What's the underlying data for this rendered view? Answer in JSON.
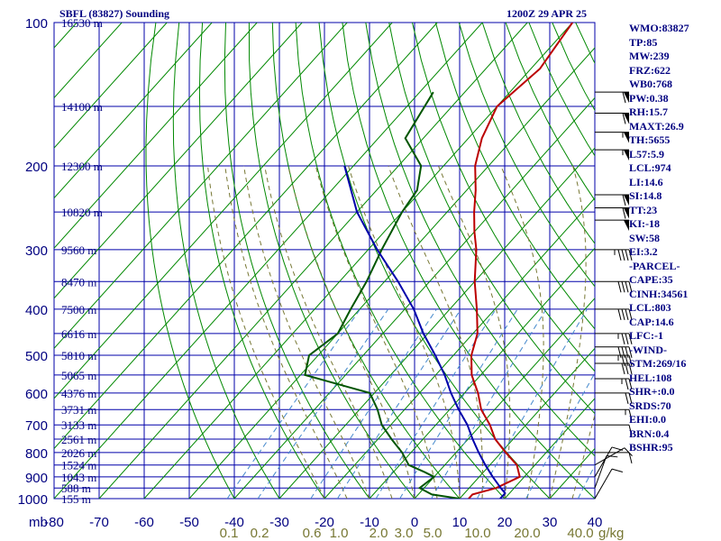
{
  "header": {
    "title_left": "SBFL (83827) Sounding",
    "title_right": "1200Z 29 APR 25"
  },
  "indices": [
    "WMO:83827",
    "TP:85",
    "MW:239",
    "FRZ:622",
    "WB0:768",
    "PW:0.38",
    "RH:15.7",
    "MAXT:26.9",
    "TH:5655",
    "L57:5.9",
    "LCL:974",
    "LI:14.6",
    "SI:14.8",
    "TT:23",
    "KI:-18",
    "SW:58",
    "EI:3.2",
    "-PARCEL-",
    "CAPE:35",
    "CINH:34561",
    "LCL:803",
    "CAP:14.6",
    "LFC:-1",
    "-WIND-",
    "STM:269/16",
    "HEL:108",
    "SHR+:0.0",
    "SRDS:70",
    "EHI:0.0",
    "BRN:0.4",
    "BSHR:95"
  ],
  "colors": {
    "grid": "#0000aa",
    "isotherm": "#008800",
    "dry_adiabat": "#008800",
    "moist_adiabat": "#777733",
    "mixing_ratio": "#4488cc",
    "temperature": "#bb0000",
    "dewpoint": "#005500",
    "parcel": "#0000aa",
    "label": "#000080",
    "mixing_label": "#777733"
  },
  "chart_data": {
    "type": "line",
    "title": "SBFL (83827) Sounding",
    "subtitle": "1200Z 29 APR 25",
    "x_unit_label": "mb",
    "x_ticks": [
      -80,
      -70,
      -60,
      -50,
      -40,
      -30,
      -20,
      -10,
      0,
      10,
      20,
      30,
      40
    ],
    "x_tick_labels": [
      "-80",
      "-70",
      "-60",
      "-50",
      "-40",
      "-30",
      "-20",
      "-10",
      "0",
      "10",
      "20",
      "30",
      "40"
    ],
    "xlim": [
      -80,
      40
    ],
    "y_ticks": [
      100,
      200,
      300,
      400,
      500,
      600,
      700,
      800,
      900,
      1000
    ],
    "y_tick_labels": [
      "100",
      "200",
      "300",
      "400",
      "500",
      "600",
      "700",
      "800",
      "900",
      "1000"
    ],
    "ylim": [
      100,
      1000
    ],
    "y_scale": "log",
    "height_labels": [
      {
        "p": 100,
        "label": "16530 m"
      },
      {
        "p": 150,
        "label": "14100 m"
      },
      {
        "p": 200,
        "label": "12300 m"
      },
      {
        "p": 250,
        "label": "10820 m"
      },
      {
        "p": 300,
        "label": "9560 m"
      },
      {
        "p": 350,
        "label": "8470 m"
      },
      {
        "p": 400,
        "label": "7500 m"
      },
      {
        "p": 450,
        "label": "6616 m"
      },
      {
        "p": 500,
        "label": "5810 m"
      },
      {
        "p": 550,
        "label": "5065 m"
      },
      {
        "p": 600,
        "label": "4376 m"
      },
      {
        "p": 650,
        "label": "3731 m"
      },
      {
        "p": 700,
        "label": "3133 m"
      },
      {
        "p": 750,
        "label": "2561 m"
      },
      {
        "p": 800,
        "label": "2026 m"
      },
      {
        "p": 850,
        "label": "1524 m"
      },
      {
        "p": 900,
        "label": "1043 m"
      },
      {
        "p": 950,
        "label": "588 m"
      },
      {
        "p": 1000,
        "label": "155 m"
      }
    ],
    "mixing_ratio_labels": [
      "0.1",
      "0.2",
      "0.6",
      "1.0",
      "2.0",
      "3.0",
      "5.0",
      "10.0",
      "20.0",
      "40.0"
    ],
    "mixing_ratio_unit": "g/kg",
    "series": [
      {
        "key": "temperature",
        "points": [
          [
            100,
            -60
          ],
          [
            125,
            -58
          ],
          [
            150,
            -60
          ],
          [
            175,
            -57
          ],
          [
            200,
            -53
          ],
          [
            225,
            -48
          ],
          [
            250,
            -44
          ],
          [
            275,
            -40
          ],
          [
            300,
            -36
          ],
          [
            350,
            -30
          ],
          [
            400,
            -24
          ],
          [
            450,
            -19
          ],
          [
            500,
            -16
          ],
          [
            550,
            -12
          ],
          [
            600,
            -7
          ],
          [
            650,
            -3
          ],
          [
            700,
            2
          ],
          [
            750,
            6
          ],
          [
            800,
            11
          ],
          [
            850,
            16
          ],
          [
            900,
            19
          ],
          [
            950,
            16
          ],
          [
            980,
            12
          ],
          [
            1000,
            12
          ]
        ]
      },
      {
        "key": "dewpoint",
        "points": [
          [
            140,
            -77
          ],
          [
            175,
            -74
          ],
          [
            200,
            -65
          ],
          [
            225,
            -61
          ],
          [
            250,
            -60
          ],
          [
            300,
            -57
          ],
          [
            350,
            -54
          ],
          [
            400,
            -52
          ],
          [
            450,
            -50
          ],
          [
            500,
            -52
          ],
          [
            550,
            -49
          ],
          [
            600,
            -31
          ],
          [
            650,
            -26
          ],
          [
            700,
            -22
          ],
          [
            750,
            -17
          ],
          [
            800,
            -12
          ],
          [
            850,
            -8
          ],
          [
            880,
            -3
          ],
          [
            900,
            0
          ],
          [
            950,
            -1
          ],
          [
            980,
            3
          ],
          [
            1000,
            10
          ]
        ]
      },
      {
        "key": "parcel",
        "points": [
          [
            200,
            -82
          ],
          [
            250,
            -70
          ],
          [
            300,
            -58
          ],
          [
            350,
            -47
          ],
          [
            400,
            -38
          ],
          [
            450,
            -31
          ],
          [
            500,
            -24
          ],
          [
            550,
            -18
          ],
          [
            600,
            -13
          ],
          [
            650,
            -8
          ],
          [
            700,
            -3
          ],
          [
            750,
            1
          ],
          [
            800,
            5
          ],
          [
            850,
            9
          ],
          [
            900,
            13
          ],
          [
            950,
            17
          ],
          [
            974,
            19
          ],
          [
            1000,
            19
          ]
        ]
      }
    ],
    "winds": [
      {
        "p": 140,
        "dir": 270,
        "spd": 60
      },
      {
        "p": 155,
        "dir": 270,
        "spd": 60
      },
      {
        "p": 170,
        "dir": 270,
        "spd": 55
      },
      {
        "p": 185,
        "dir": 270,
        "spd": 55
      },
      {
        "p": 230,
        "dir": 270,
        "spd": 60
      },
      {
        "p": 245,
        "dir": 270,
        "spd": 60
      },
      {
        "p": 260,
        "dir": 270,
        "spd": 50
      },
      {
        "p": 300,
        "dir": 270,
        "spd": 45
      },
      {
        "p": 350,
        "dir": 270,
        "spd": 40
      },
      {
        "p": 400,
        "dir": 270,
        "spd": 40
      },
      {
        "p": 450,
        "dir": 270,
        "spd": 35
      },
      {
        "p": 480,
        "dir": 270,
        "spd": 40
      },
      {
        "p": 500,
        "dir": 270,
        "spd": 35
      },
      {
        "p": 520,
        "dir": 270,
        "spd": 30
      },
      {
        "p": 560,
        "dir": 270,
        "spd": 25
      },
      {
        "p": 600,
        "dir": 270,
        "spd": 20
      },
      {
        "p": 650,
        "dir": 270,
        "spd": 15
      },
      {
        "p": 700,
        "dir": 270,
        "spd": 10
      },
      {
        "p": 800,
        "dir": 270,
        "spd": 10
      },
      {
        "p": 850,
        "dir": 300,
        "spd": 10
      },
      {
        "p": 900,
        "dir": 330,
        "spd": 10
      },
      {
        "p": 950,
        "dir": 340,
        "spd": 10
      },
      {
        "p": 1000,
        "dir": 330,
        "spd": 10
      }
    ]
  }
}
